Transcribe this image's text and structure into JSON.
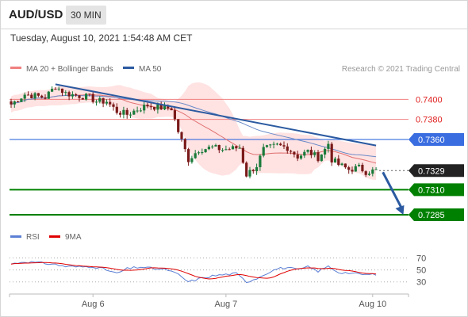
{
  "header": {
    "symbol": "AUD/USD",
    "timeframe": "30 MIN",
    "datetime": "Tuesday, August 10, 2021 1:54:48 AM CET"
  },
  "chart_data": [
    {
      "type": "candlestick",
      "legend": [
        "MA 20 + Bollinger Bands",
        "MA 50"
      ],
      "legend_placement": "top-left",
      "watermark": "Research © 2021 Trading Central",
      "colors": {
        "up": "#1a7a3a",
        "down": "#7a1a1a",
        "bands": "#ffd8d8",
        "ma20": "#e07070",
        "ma50": "#6a8ac8",
        "trend": "#2b5aa0",
        "resistance": "#f08080",
        "pivot": "#4a7ae0",
        "support": "#008000",
        "last": "#222222"
      },
      "y_range": [
        0.727,
        0.742
      ],
      "x_ticks": [
        {
          "label": "Aug 6",
          "index": 24
        },
        {
          "label": "Aug 7",
          "index": 63
        },
        {
          "label": "Aug 10",
          "index": 106
        }
      ],
      "levels": [
        {
          "value": 0.74,
          "label": "0.7400",
          "kind": "resistance"
        },
        {
          "value": 0.738,
          "label": "0.7380",
          "kind": "resistance"
        },
        {
          "value": 0.736,
          "label": "0.7360",
          "kind": "pivot"
        },
        {
          "value": 0.7329,
          "label": "0.7329",
          "kind": "last"
        },
        {
          "value": 0.731,
          "label": "0.7310",
          "kind": "support"
        },
        {
          "value": 0.7285,
          "label": "0.7285",
          "kind": "support"
        }
      ],
      "trendline": {
        "from": {
          "index": 13,
          "value": 0.7415
        },
        "to": {
          "index": 107,
          "value": 0.7354
        }
      },
      "forecast_arrow": {
        "from": {
          "index": 109,
          "value": 0.7329
        },
        "to": {
          "index": 115,
          "value": 0.7285
        }
      },
      "anchors": [
        [
          0,
          0.7395
        ],
        [
          4,
          0.7405
        ],
        [
          10,
          0.7402
        ],
        [
          13,
          0.7413
        ],
        [
          16,
          0.7406
        ],
        [
          19,
          0.7404
        ],
        [
          23,
          0.7402
        ],
        [
          25,
          0.7398
        ],
        [
          28,
          0.7398
        ],
        [
          31,
          0.7388
        ],
        [
          34,
          0.7385
        ],
        [
          37,
          0.739
        ],
        [
          40,
          0.7394
        ],
        [
          43,
          0.7392
        ],
        [
          47,
          0.7391
        ],
        [
          49,
          0.7368
        ],
        [
          52,
          0.734
        ],
        [
          55,
          0.735
        ],
        [
          59,
          0.7352
        ],
        [
          62,
          0.735
        ],
        [
          65,
          0.7351
        ],
        [
          67,
          0.7352
        ],
        [
          69,
          0.7325
        ],
        [
          72,
          0.7334
        ],
        [
          74,
          0.735
        ],
        [
          78,
          0.7354
        ],
        [
          81,
          0.7352
        ],
        [
          84,
          0.7343
        ],
        [
          87,
          0.7348
        ],
        [
          90,
          0.7342
        ],
        [
          92,
          0.735
        ],
        [
          93,
          0.7356
        ],
        [
          94,
          0.734
        ],
        [
          96,
          0.7335
        ],
        [
          99,
          0.733
        ],
        [
          102,
          0.7332
        ],
        [
          104,
          0.7328
        ],
        [
          107,
          0.7329
        ]
      ]
    },
    {
      "type": "line",
      "title": "RSI",
      "legend": [
        "RSI",
        "9MA"
      ],
      "colors": {
        "rsi": "#5b7fd4",
        "ma": "#e00000"
      },
      "y_range": [
        15,
        80
      ],
      "y_ticks": [
        70,
        50,
        30
      ],
      "gridlines": [
        70,
        50,
        30
      ],
      "anchors": [
        [
          0,
          60
        ],
        [
          4,
          64
        ],
        [
          8,
          62
        ],
        [
          12,
          60
        ],
        [
          16,
          56
        ],
        [
          20,
          55
        ],
        [
          24,
          56
        ],
        [
          28,
          50
        ],
        [
          31,
          44
        ],
        [
          34,
          52
        ],
        [
          38,
          55
        ],
        [
          42,
          52
        ],
        [
          46,
          50
        ],
        [
          49,
          42
        ],
        [
          52,
          30
        ],
        [
          55,
          35
        ],
        [
          59,
          40
        ],
        [
          62,
          42
        ],
        [
          66,
          44
        ],
        [
          69,
          30
        ],
        [
          72,
          36
        ],
        [
          75,
          45
        ],
        [
          78,
          52
        ],
        [
          81,
          54
        ],
        [
          84,
          50
        ],
        [
          87,
          55
        ],
        [
          90,
          48
        ],
        [
          93,
          56
        ],
        [
          96,
          46
        ],
        [
          99,
          45
        ],
        [
          102,
          43
        ],
        [
          105,
          42
        ],
        [
          107,
          43
        ]
      ]
    }
  ]
}
